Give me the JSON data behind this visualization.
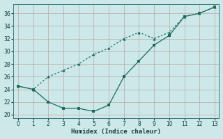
{
  "xlabel": "Humidex (Indice chaleur)",
  "line_solid_x": [
    0,
    1,
    2,
    3,
    4,
    5,
    6,
    7,
    8,
    9,
    10,
    11,
    12,
    13
  ],
  "line_solid_y": [
    24.5,
    24.0,
    22.0,
    21.0,
    21.0,
    20.5,
    21.5,
    26.0,
    28.5,
    31.0,
    32.5,
    35.5,
    36.0,
    37.0
  ],
  "line_dotted_x": [
    0,
    1,
    2,
    3,
    4,
    5,
    6,
    7,
    8,
    9,
    10,
    11,
    12,
    13
  ],
  "line_dotted_y": [
    24.5,
    24.0,
    26.0,
    27.0,
    28.0,
    29.5,
    30.5,
    32.0,
    33.0,
    32.0,
    33.0,
    35.5,
    36.0,
    37.0
  ],
  "xlim": [
    -0.3,
    13.3
  ],
  "ylim": [
    19.5,
    37.5
  ],
  "yticks": [
    20,
    22,
    24,
    26,
    28,
    30,
    32,
    34,
    36
  ],
  "xticks": [
    0,
    1,
    2,
    3,
    4,
    5,
    6,
    7,
    8,
    9,
    10,
    11,
    12,
    13
  ],
  "bg_color": "#cce8e8",
  "grid_color": "#b8a8a8",
  "line_color": "#1a6b5a"
}
